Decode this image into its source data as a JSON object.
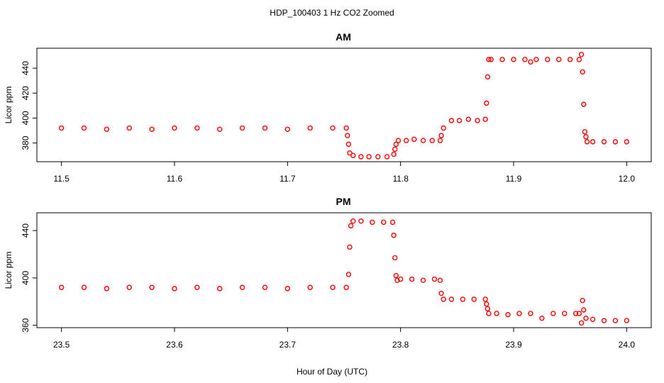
{
  "figure": {
    "title": "HDP_100403  1 Hz CO2 Zoomed",
    "xlabel": "Hour of Day (UTC)"
  },
  "chart_data": [
    {
      "type": "scatter",
      "title": "AM",
      "xlabel": "",
      "ylabel": "Licor ppm",
      "xlim": [
        11.5,
        12.0
      ],
      "ylim": [
        365,
        456
      ],
      "xticks": [
        11.5,
        11.6,
        11.7,
        11.8,
        11.9,
        12.0
      ],
      "xtick_labels": [
        "11.5",
        "11.6",
        "11.7",
        "11.8",
        "11.9",
        "12.0"
      ],
      "yticks": [
        380,
        400,
        420,
        440
      ],
      "ytick_labels": [
        "380",
        "400",
        "420",
        "440"
      ],
      "marker_color": "#ff0000",
      "grid": false,
      "series": [
        {
          "x": [
            11.5,
            11.52,
            11.54,
            11.56,
            11.58,
            11.6,
            11.62,
            11.64,
            11.66,
            11.68,
            11.7,
            11.72,
            11.74,
            11.752,
            11.753,
            11.754,
            11.755,
            11.758,
            11.765,
            11.772,
            11.78,
            11.788,
            11.794,
            11.795,
            11.796,
            11.798,
            11.805,
            11.812,
            11.82,
            11.828,
            11.835,
            11.836,
            11.838,
            11.845,
            11.852,
            11.86,
            11.868,
            11.875,
            11.876,
            11.877,
            11.878,
            11.88,
            11.89,
            11.9,
            11.91,
            11.915,
            11.92,
            11.93,
            11.94,
            11.95,
            11.958,
            11.96,
            11.961,
            11.962,
            11.963,
            11.964,
            11.965,
            11.97,
            11.98,
            11.99,
            12.0
          ],
          "y": [
            392,
            392,
            391,
            392,
            391,
            392,
            392,
            391,
            392,
            392,
            391,
            392,
            392,
            392,
            386,
            379,
            372,
            370,
            369,
            369,
            369,
            369,
            371,
            375,
            379,
            382,
            382,
            383,
            382,
            382,
            382,
            386,
            392,
            398,
            398,
            399,
            398,
            399,
            412,
            433,
            447,
            447,
            447,
            447,
            447,
            445,
            447,
            447,
            447,
            447,
            447,
            451,
            437,
            411,
            389,
            385,
            381,
            381,
            381,
            381,
            381
          ]
        }
      ]
    },
    {
      "type": "scatter",
      "title": "PM",
      "xlabel": "",
      "ylabel": "Licor ppm",
      "xlim": [
        23.5,
        24.0
      ],
      "ylim": [
        358,
        455
      ],
      "xticks": [
        23.5,
        23.6,
        23.7,
        23.8,
        23.9,
        24.0
      ],
      "xtick_labels": [
        "23.5",
        "23.6",
        "23.7",
        "23.8",
        "23.9",
        "24.0"
      ],
      "yticks": [
        360,
        400,
        440
      ],
      "ytick_labels": [
        "360",
        "400",
        "440"
      ],
      "marker_color": "#ff0000",
      "grid": false,
      "series": [
        {
          "x": [
            23.5,
            23.52,
            23.54,
            23.56,
            23.58,
            23.6,
            23.62,
            23.64,
            23.66,
            23.68,
            23.7,
            23.72,
            23.74,
            23.752,
            23.754,
            23.755,
            23.756,
            23.758,
            23.765,
            23.775,
            23.785,
            23.793,
            23.794,
            23.795,
            23.796,
            23.797,
            23.8,
            23.81,
            23.82,
            23.83,
            23.835,
            23.836,
            23.838,
            23.845,
            23.855,
            23.865,
            23.875,
            23.876,
            23.877,
            23.878,
            23.885,
            23.895,
            23.905,
            23.915,
            23.925,
            23.935,
            23.945,
            23.955,
            23.958,
            23.96,
            23.961,
            23.962,
            23.964,
            23.97,
            23.98,
            23.99,
            24.0
          ],
          "y": [
            392,
            392,
            391,
            392,
            392,
            391,
            392,
            391,
            392,
            392,
            391,
            392,
            392,
            392,
            403,
            426,
            444,
            448,
            448,
            447,
            447,
            447,
            436,
            417,
            402,
            398,
            399,
            399,
            398,
            399,
            398,
            387,
            382,
            382,
            382,
            382,
            382,
            378,
            374,
            370,
            370,
            369,
            370,
            370,
            366,
            370,
            370,
            370,
            370,
            362,
            381,
            373,
            366,
            365,
            364,
            364,
            364
          ]
        }
      ]
    }
  ]
}
